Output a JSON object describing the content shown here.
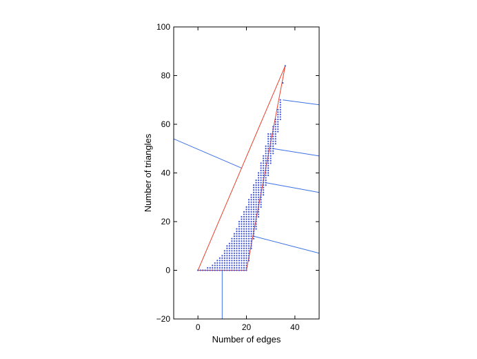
{
  "chart_data": {
    "type": "scatter",
    "xlabel": "Number of edges",
    "ylabel": "Number of triangles",
    "xlim": [
      -10,
      50
    ],
    "ylim": [
      -20,
      100
    ],
    "xticks": [
      0,
      20,
      40
    ],
    "yticks": [
      -20,
      0,
      20,
      40,
      60,
      80,
      100
    ],
    "xtick_labels": [
      "0",
      "20",
      "40"
    ],
    "ytick_labels": [
      "−20",
      "0",
      "20",
      "40",
      "60",
      "80",
      "100"
    ],
    "grid": false,
    "legend": "none",
    "colors": {
      "points": "#3b4fd8",
      "hull": "#e8402a",
      "lines": "#3a6fe8",
      "axes": "#000000"
    },
    "hull_polygon": [
      [
        0,
        0
      ],
      [
        20,
        0
      ],
      [
        36,
        84
      ],
      [
        0,
        0
      ]
    ],
    "column_ranges": [
      {
        "x": 0,
        "ymin": 0,
        "ymax": 0
      },
      {
        "x": 1,
        "ymin": 0,
        "ymax": 0
      },
      {
        "x": 2,
        "ymin": 0,
        "ymax": 0
      },
      {
        "x": 3,
        "ymin": 0,
        "ymax": 0
      },
      {
        "x": 4,
        "ymin": 0,
        "ymax": 1
      },
      {
        "x": 5,
        "ymin": 0,
        "ymax": 1
      },
      {
        "x": 6,
        "ymin": 0,
        "ymax": 2
      },
      {
        "x": 7,
        "ymin": 0,
        "ymax": 3
      },
      {
        "x": 8,
        "ymin": 0,
        "ymax": 4
      },
      {
        "x": 9,
        "ymin": 0,
        "ymax": 5
      },
      {
        "x": 10,
        "ymin": 0,
        "ymax": 6
      },
      {
        "x": 11,
        "ymin": 0,
        "ymax": 8
      },
      {
        "x": 12,
        "ymin": 0,
        "ymax": 10
      },
      {
        "x": 13,
        "ymin": 0,
        "ymax": 11
      },
      {
        "x": 14,
        "ymin": 0,
        "ymax": 13
      },
      {
        "x": 15,
        "ymin": 0,
        "ymax": 15
      },
      {
        "x": 16,
        "ymin": 0,
        "ymax": 17
      },
      {
        "x": 17,
        "ymin": 0,
        "ymax": 20
      },
      {
        "x": 18,
        "ymin": 0,
        "ymax": 22
      },
      {
        "x": 19,
        "ymin": 0,
        "ymax": 24
      },
      {
        "x": 20,
        "ymin": 0,
        "ymax": 26
      },
      {
        "x": 21,
        "ymin": 4,
        "ymax": 29
      },
      {
        "x": 22,
        "ymin": 9,
        "ymax": 31
      },
      {
        "x": 23,
        "ymin": 13,
        "ymax": 35
      },
      {
        "x": 24,
        "ymin": 17,
        "ymax": 37
      },
      {
        "x": 25,
        "ymin": 22,
        "ymax": 40
      },
      {
        "x": 26,
        "ymin": 26,
        "ymax": 44
      },
      {
        "x": 27,
        "ymin": 31,
        "ymax": 47
      },
      {
        "x": 28,
        "ymin": 35,
        "ymax": 51
      },
      {
        "x": 29,
        "ymin": 39,
        "ymax": 56
      },
      {
        "x": 30,
        "ymin": 44,
        "ymax": 56
      },
      {
        "x": 31,
        "ymin": 48,
        "ymax": 59
      },
      {
        "x": 32,
        "ymin": 52,
        "ymax": 62
      },
      {
        "x": 33,
        "ymin": 57,
        "ymax": 66
      },
      {
        "x": 34,
        "ymin": 62,
        "ymax": 70
      },
      {
        "x": 35,
        "ymin": 77,
        "ymax": 77
      },
      {
        "x": 36,
        "ymin": 84,
        "ymax": 84
      }
    ],
    "annotation_lines": [
      {
        "from": [
          -10,
          54
        ],
        "to": [
          18,
          42
        ]
      },
      {
        "from": [
          35,
          70
        ],
        "to": [
          50,
          68
        ]
      },
      {
        "from": [
          31,
          50
        ],
        "to": [
          50,
          47
        ]
      },
      {
        "from": [
          28,
          36
        ],
        "to": [
          50,
          32
        ]
      },
      {
        "from": [
          23,
          14
        ],
        "to": [
          50,
          7
        ]
      },
      {
        "from": [
          10,
          0
        ],
        "to": [
          10,
          -20
        ]
      }
    ]
  }
}
